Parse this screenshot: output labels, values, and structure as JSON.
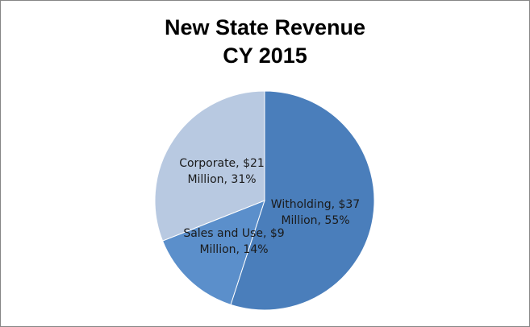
{
  "chart_data": {
    "type": "pie",
    "title": "New State Revenue",
    "subtitle": "CY 2015",
    "slices": [
      {
        "label": "Witholding",
        "value": 37,
        "percent": 55,
        "color": "#4a7ebb",
        "label_lines": [
          "Witholding, $37",
          "Million, 55%"
        ]
      },
      {
        "label": "Sales and Use",
        "value": 9,
        "percent": 14,
        "color": "#5b8fcb",
        "label_lines": [
          "Sales and Use, $9",
          "Million, 14%"
        ]
      },
      {
        "label": "Corporate",
        "value": 21,
        "percent": 31,
        "color": "#b8c9e1",
        "label_lines": [
          "Corporate, $21",
          "Million, 31%"
        ]
      }
    ],
    "legend": "none"
  }
}
